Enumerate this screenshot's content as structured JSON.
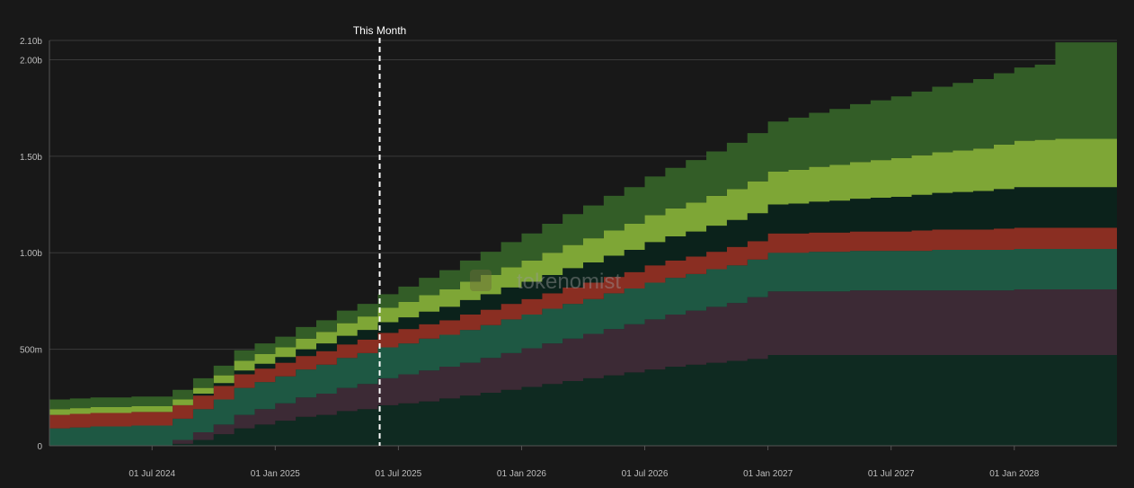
{
  "chart_data": {
    "type": "area",
    "stacked": true,
    "step": "monthly",
    "watermark": "tokenomist",
    "marker": {
      "label": "This Month",
      "x_index": 16,
      "color": "#ffffff"
    },
    "ylim": [
      0,
      2.1
    ],
    "y_ticks": [
      {
        "value": 0,
        "label": "0"
      },
      {
        "value": 0.5,
        "label": "500m"
      },
      {
        "value": 1.0,
        "label": "1.00b"
      },
      {
        "value": 1.5,
        "label": "1.50b"
      },
      {
        "value": 2.0,
        "label": "2.00b"
      },
      {
        "value": 2.1,
        "label": "2.10b"
      }
    ],
    "x_ticks": [
      {
        "index": 5,
        "label": "01 Jul 2024"
      },
      {
        "index": 11,
        "label": "01 Jan 2025"
      },
      {
        "index": 17,
        "label": "01 Jul 2025"
      },
      {
        "index": 23,
        "label": "01 Jan 2026"
      },
      {
        "index": 29,
        "label": "01 Jul 2026"
      },
      {
        "index": 35,
        "label": "01 Jan 2027"
      },
      {
        "index": 41,
        "label": "01 Jul 2027"
      },
      {
        "index": 47,
        "label": "01 Jan 2028"
      }
    ],
    "x": [
      "Feb 2024",
      "Mar 2024",
      "Apr 2024",
      "May 2024",
      "Jun 2024",
      "Jul 2024",
      "Aug 2024",
      "Sep 2024",
      "Oct 2024",
      "Nov 2024",
      "Dec 2024",
      "Jan 2025",
      "Feb 2025",
      "Mar 2025",
      "Apr 2025",
      "May 2025",
      "Jun 2025",
      "Jul 2025",
      "Aug 2025",
      "Sep 2025",
      "Oct 2025",
      "Nov 2025",
      "Dec 2025",
      "Jan 2026",
      "Feb 2026",
      "Mar 2026",
      "Apr 2026",
      "May 2026",
      "Jun 2026",
      "Jul 2026",
      "Aug 2026",
      "Sep 2026",
      "Oct 2026",
      "Nov 2026",
      "Dec 2026",
      "Jan 2027",
      "Feb 2027",
      "Mar 2027",
      "Apr 2027",
      "May 2027",
      "Jun 2027",
      "Jul 2027",
      "Aug 2027",
      "Sep 2027",
      "Oct 2027",
      "Nov 2027",
      "Dec 2027",
      "Jan 2028",
      "Feb 2028",
      "Mar 2028",
      "Apr 2028",
      "May 2028"
    ],
    "series": [
      {
        "color": "#0f2a21",
        "values": [
          0,
          0,
          0,
          0,
          0,
          0,
          0.01,
          0.03,
          0.06,
          0.09,
          0.11,
          0.13,
          0.15,
          0.16,
          0.18,
          0.19,
          0.21,
          0.22,
          0.23,
          0.245,
          0.26,
          0.275,
          0.29,
          0.305,
          0.32,
          0.335,
          0.35,
          0.365,
          0.38,
          0.395,
          0.41,
          0.42,
          0.43,
          0.44,
          0.45,
          0.47,
          0.47,
          0.47,
          0.47,
          0.47,
          0.47,
          0.47,
          0.47,
          0.47,
          0.47,
          0.47,
          0.47,
          0.47,
          0.47,
          0.47,
          0.47,
          0.47
        ]
      },
      {
        "color": "#3c2a35",
        "values": [
          0,
          0,
          0,
          0,
          0,
          0,
          0.02,
          0.04,
          0.05,
          0.07,
          0.08,
          0.09,
          0.1,
          0.11,
          0.12,
          0.13,
          0.14,
          0.15,
          0.16,
          0.165,
          0.17,
          0.18,
          0.19,
          0.2,
          0.21,
          0.22,
          0.23,
          0.24,
          0.25,
          0.26,
          0.27,
          0.28,
          0.29,
          0.3,
          0.32,
          0.33,
          0.33,
          0.33,
          0.33,
          0.335,
          0.335,
          0.335,
          0.335,
          0.335,
          0.335,
          0.335,
          0.335,
          0.34,
          0.34,
          0.34,
          0.34,
          0.34
        ]
      },
      {
        "color": "#1e5843",
        "values": [
          0.09,
          0.095,
          0.1,
          0.1,
          0.105,
          0.105,
          0.11,
          0.12,
          0.13,
          0.14,
          0.14,
          0.14,
          0.145,
          0.15,
          0.155,
          0.16,
          0.16,
          0.16,
          0.165,
          0.165,
          0.17,
          0.17,
          0.175,
          0.175,
          0.18,
          0.18,
          0.18,
          0.185,
          0.185,
          0.19,
          0.19,
          0.19,
          0.195,
          0.195,
          0.195,
          0.2,
          0.2,
          0.205,
          0.205,
          0.205,
          0.205,
          0.205,
          0.205,
          0.21,
          0.21,
          0.21,
          0.21,
          0.21,
          0.21,
          0.21,
          0.21,
          0.21
        ]
      },
      {
        "color": "#8a2e22",
        "values": [
          0.07,
          0.07,
          0.07,
          0.07,
          0.07,
          0.07,
          0.07,
          0.07,
          0.07,
          0.07,
          0.07,
          0.07,
          0.07,
          0.07,
          0.07,
          0.07,
          0.075,
          0.075,
          0.075,
          0.075,
          0.08,
          0.08,
          0.08,
          0.08,
          0.08,
          0.085,
          0.085,
          0.085,
          0.085,
          0.09,
          0.09,
          0.09,
          0.09,
          0.095,
          0.095,
          0.1,
          0.1,
          0.1,
          0.1,
          0.1,
          0.1,
          0.1,
          0.105,
          0.105,
          0.105,
          0.105,
          0.11,
          0.11,
          0.11,
          0.11,
          0.11,
          0.11
        ]
      },
      {
        "color": "#0b221b",
        "values": [
          0,
          0,
          0,
          0,
          0,
          0,
          0,
          0.01,
          0.015,
          0.02,
          0.025,
          0.03,
          0.035,
          0.04,
          0.045,
          0.05,
          0.055,
          0.06,
          0.065,
          0.07,
          0.075,
          0.08,
          0.085,
          0.09,
          0.095,
          0.1,
          0.105,
          0.11,
          0.115,
          0.12,
          0.125,
          0.13,
          0.135,
          0.14,
          0.145,
          0.15,
          0.155,
          0.16,
          0.165,
          0.17,
          0.175,
          0.18,
          0.185,
          0.19,
          0.195,
          0.2,
          0.205,
          0.21,
          0.21,
          0.21,
          0.21,
          0.21
        ]
      },
      {
        "color": "#7ea636",
        "values": [
          0.03,
          0.03,
          0.03,
          0.03,
          0.03,
          0.03,
          0.03,
          0.03,
          0.04,
          0.05,
          0.05,
          0.05,
          0.055,
          0.06,
          0.065,
          0.07,
          0.075,
          0.08,
          0.085,
          0.09,
          0.095,
          0.1,
          0.105,
          0.11,
          0.115,
          0.12,
          0.125,
          0.13,
          0.135,
          0.14,
          0.145,
          0.15,
          0.155,
          0.16,
          0.165,
          0.17,
          0.175,
          0.18,
          0.185,
          0.19,
          0.195,
          0.2,
          0.205,
          0.21,
          0.215,
          0.22,
          0.23,
          0.24,
          0.245,
          0.25,
          0.25,
          0.25
        ]
      },
      {
        "color": "#335d27",
        "values": [
          0.05,
          0.05,
          0.05,
          0.05,
          0.05,
          0.05,
          0.05,
          0.05,
          0.05,
          0.055,
          0.055,
          0.055,
          0.06,
          0.06,
          0.065,
          0.065,
          0.07,
          0.08,
          0.09,
          0.1,
          0.11,
          0.12,
          0.13,
          0.14,
          0.15,
          0.16,
          0.17,
          0.18,
          0.19,
          0.2,
          0.21,
          0.22,
          0.23,
          0.24,
          0.25,
          0.26,
          0.27,
          0.28,
          0.29,
          0.3,
          0.31,
          0.32,
          0.33,
          0.34,
          0.35,
          0.36,
          0.37,
          0.38,
          0.39,
          0.5,
          0.5,
          0.5
        ]
      }
    ]
  }
}
